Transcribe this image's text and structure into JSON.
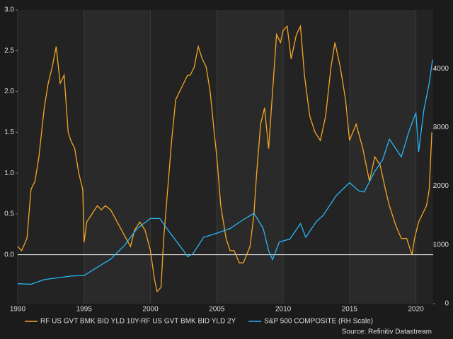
{
  "chart_data": {
    "type": "line",
    "source": "Source: Refinitiv Datastream",
    "xlim": [
      1990,
      2021.3
    ],
    "xticks": [
      1990,
      1995,
      2000,
      2005,
      2010,
      2015,
      2020
    ],
    "ylim": [
      -0.6,
      3.0
    ],
    "yticks": [
      {
        "value": 0,
        "label": "0.0"
      },
      0.5,
      {
        "value": 1,
        "label": "1.0"
      },
      1.5,
      {
        "value": 2,
        "label": "2.0"
      },
      2.5,
      {
        "value": 3,
        "label": "3.0"
      }
    ],
    "y2lim": [
      0,
      5000
    ],
    "y2ticks": [
      0,
      1000,
      2000,
      3000,
      4000
    ],
    "grid": true,
    "series": [
      {
        "name": "RF US GVT BMK BID YLD 10Y-RF US GVT BMK BID YLD 2Y",
        "color": "#f5a623",
        "axis": "y",
        "x": [
          1990.0,
          1990.3,
          1990.7,
          1991.0,
          1991.3,
          1991.6,
          1992.0,
          1992.3,
          1992.6,
          1992.9,
          1993.2,
          1993.5,
          1993.8,
          1994.0,
          1994.3,
          1994.6,
          1994.9,
          1995.0,
          1995.2,
          1995.6,
          1996.0,
          1996.3,
          1996.6,
          1997.0,
          1997.5,
          1998.0,
          1998.5,
          1998.8,
          1999.2,
          1999.6,
          2000.0,
          2000.3,
          2000.5,
          2000.8,
          2001.0,
          2001.3,
          2001.6,
          2001.9,
          2002.2,
          2002.5,
          2002.8,
          2003.0,
          2003.3,
          2003.6,
          2003.9,
          2004.2,
          2004.5,
          2004.8,
          2005.0,
          2005.3,
          2005.7,
          2006.0,
          2006.3,
          2006.7,
          2007.0,
          2007.5,
          2007.8,
          2008.0,
          2008.3,
          2008.6,
          2008.9,
          2009.2,
          2009.5,
          2009.8,
          2010.0,
          2010.3,
          2010.6,
          2011.0,
          2011.3,
          2011.6,
          2012.0,
          2012.4,
          2012.8,
          2013.2,
          2013.6,
          2013.9,
          2014.3,
          2014.7,
          2015.0,
          2015.5,
          2016.0,
          2016.5,
          2016.9,
          2017.3,
          2017.7,
          2018.0,
          2018.5,
          2018.9,
          2019.3,
          2019.7,
          2019.9,
          2020.2,
          2020.5,
          2020.8,
          2021.0,
          2021.2
        ],
        "values": [
          0.1,
          0.05,
          0.2,
          0.8,
          0.9,
          1.2,
          1.8,
          2.1,
          2.3,
          2.55,
          2.1,
          2.2,
          1.5,
          1.4,
          1.3,
          1.0,
          0.8,
          0.15,
          0.4,
          0.5,
          0.6,
          0.55,
          0.6,
          0.55,
          0.4,
          0.25,
          0.1,
          0.3,
          0.4,
          0.3,
          0.05,
          -0.3,
          -0.45,
          -0.4,
          0.2,
          0.8,
          1.4,
          1.9,
          2.0,
          2.1,
          2.2,
          2.2,
          2.3,
          2.55,
          2.4,
          2.3,
          2.0,
          1.5,
          1.2,
          0.6,
          0.2,
          0.05,
          0.05,
          -0.1,
          -0.1,
          0.1,
          0.5,
          1.0,
          1.6,
          1.8,
          1.3,
          2.0,
          2.7,
          2.6,
          2.75,
          2.8,
          2.4,
          2.7,
          2.8,
          2.2,
          1.7,
          1.5,
          1.4,
          1.7,
          2.3,
          2.6,
          2.3,
          1.9,
          1.4,
          1.6,
          1.3,
          0.9,
          1.2,
          1.1,
          0.8,
          0.6,
          0.35,
          0.2,
          0.2,
          0.0,
          0.2,
          0.4,
          0.5,
          0.6,
          0.8,
          1.5
        ]
      },
      {
        "name": "S&P 500 COMPOSITE (RH Scale)",
        "color": "#29b6f6",
        "axis": "y2",
        "x": [
          1990.0,
          1991.0,
          1992.0,
          1993.0,
          1994.0,
          1995.0,
          1996.0,
          1997.0,
          1998.0,
          1999.0,
          2000.0,
          2000.7,
          2001.5,
          2002.5,
          2002.8,
          2003.2,
          2004.0,
          2005.0,
          2006.0,
          2007.0,
          2007.8,
          2008.5,
          2008.9,
          2009.2,
          2009.7,
          2010.5,
          2011.3,
          2011.7,
          2012.5,
          2013.0,
          2014.0,
          2015.0,
          2015.7,
          2016.1,
          2016.9,
          2017.5,
          2018.0,
          2018.9,
          2019.5,
          2020.0,
          2020.2,
          2020.6,
          2021.0,
          2021.25
        ],
        "values": [
          340,
          330,
          410,
          440,
          470,
          480,
          620,
          760,
          980,
          1280,
          1450,
          1450,
          1200,
          900,
          800,
          850,
          1130,
          1200,
          1280,
          1430,
          1540,
          1280,
          900,
          750,
          1050,
          1100,
          1360,
          1130,
          1400,
          1500,
          1840,
          2060,
          1920,
          1900,
          2250,
          2450,
          2800,
          2500,
          2950,
          3250,
          2580,
          3300,
          3750,
          4150
        ]
      }
    ]
  }
}
